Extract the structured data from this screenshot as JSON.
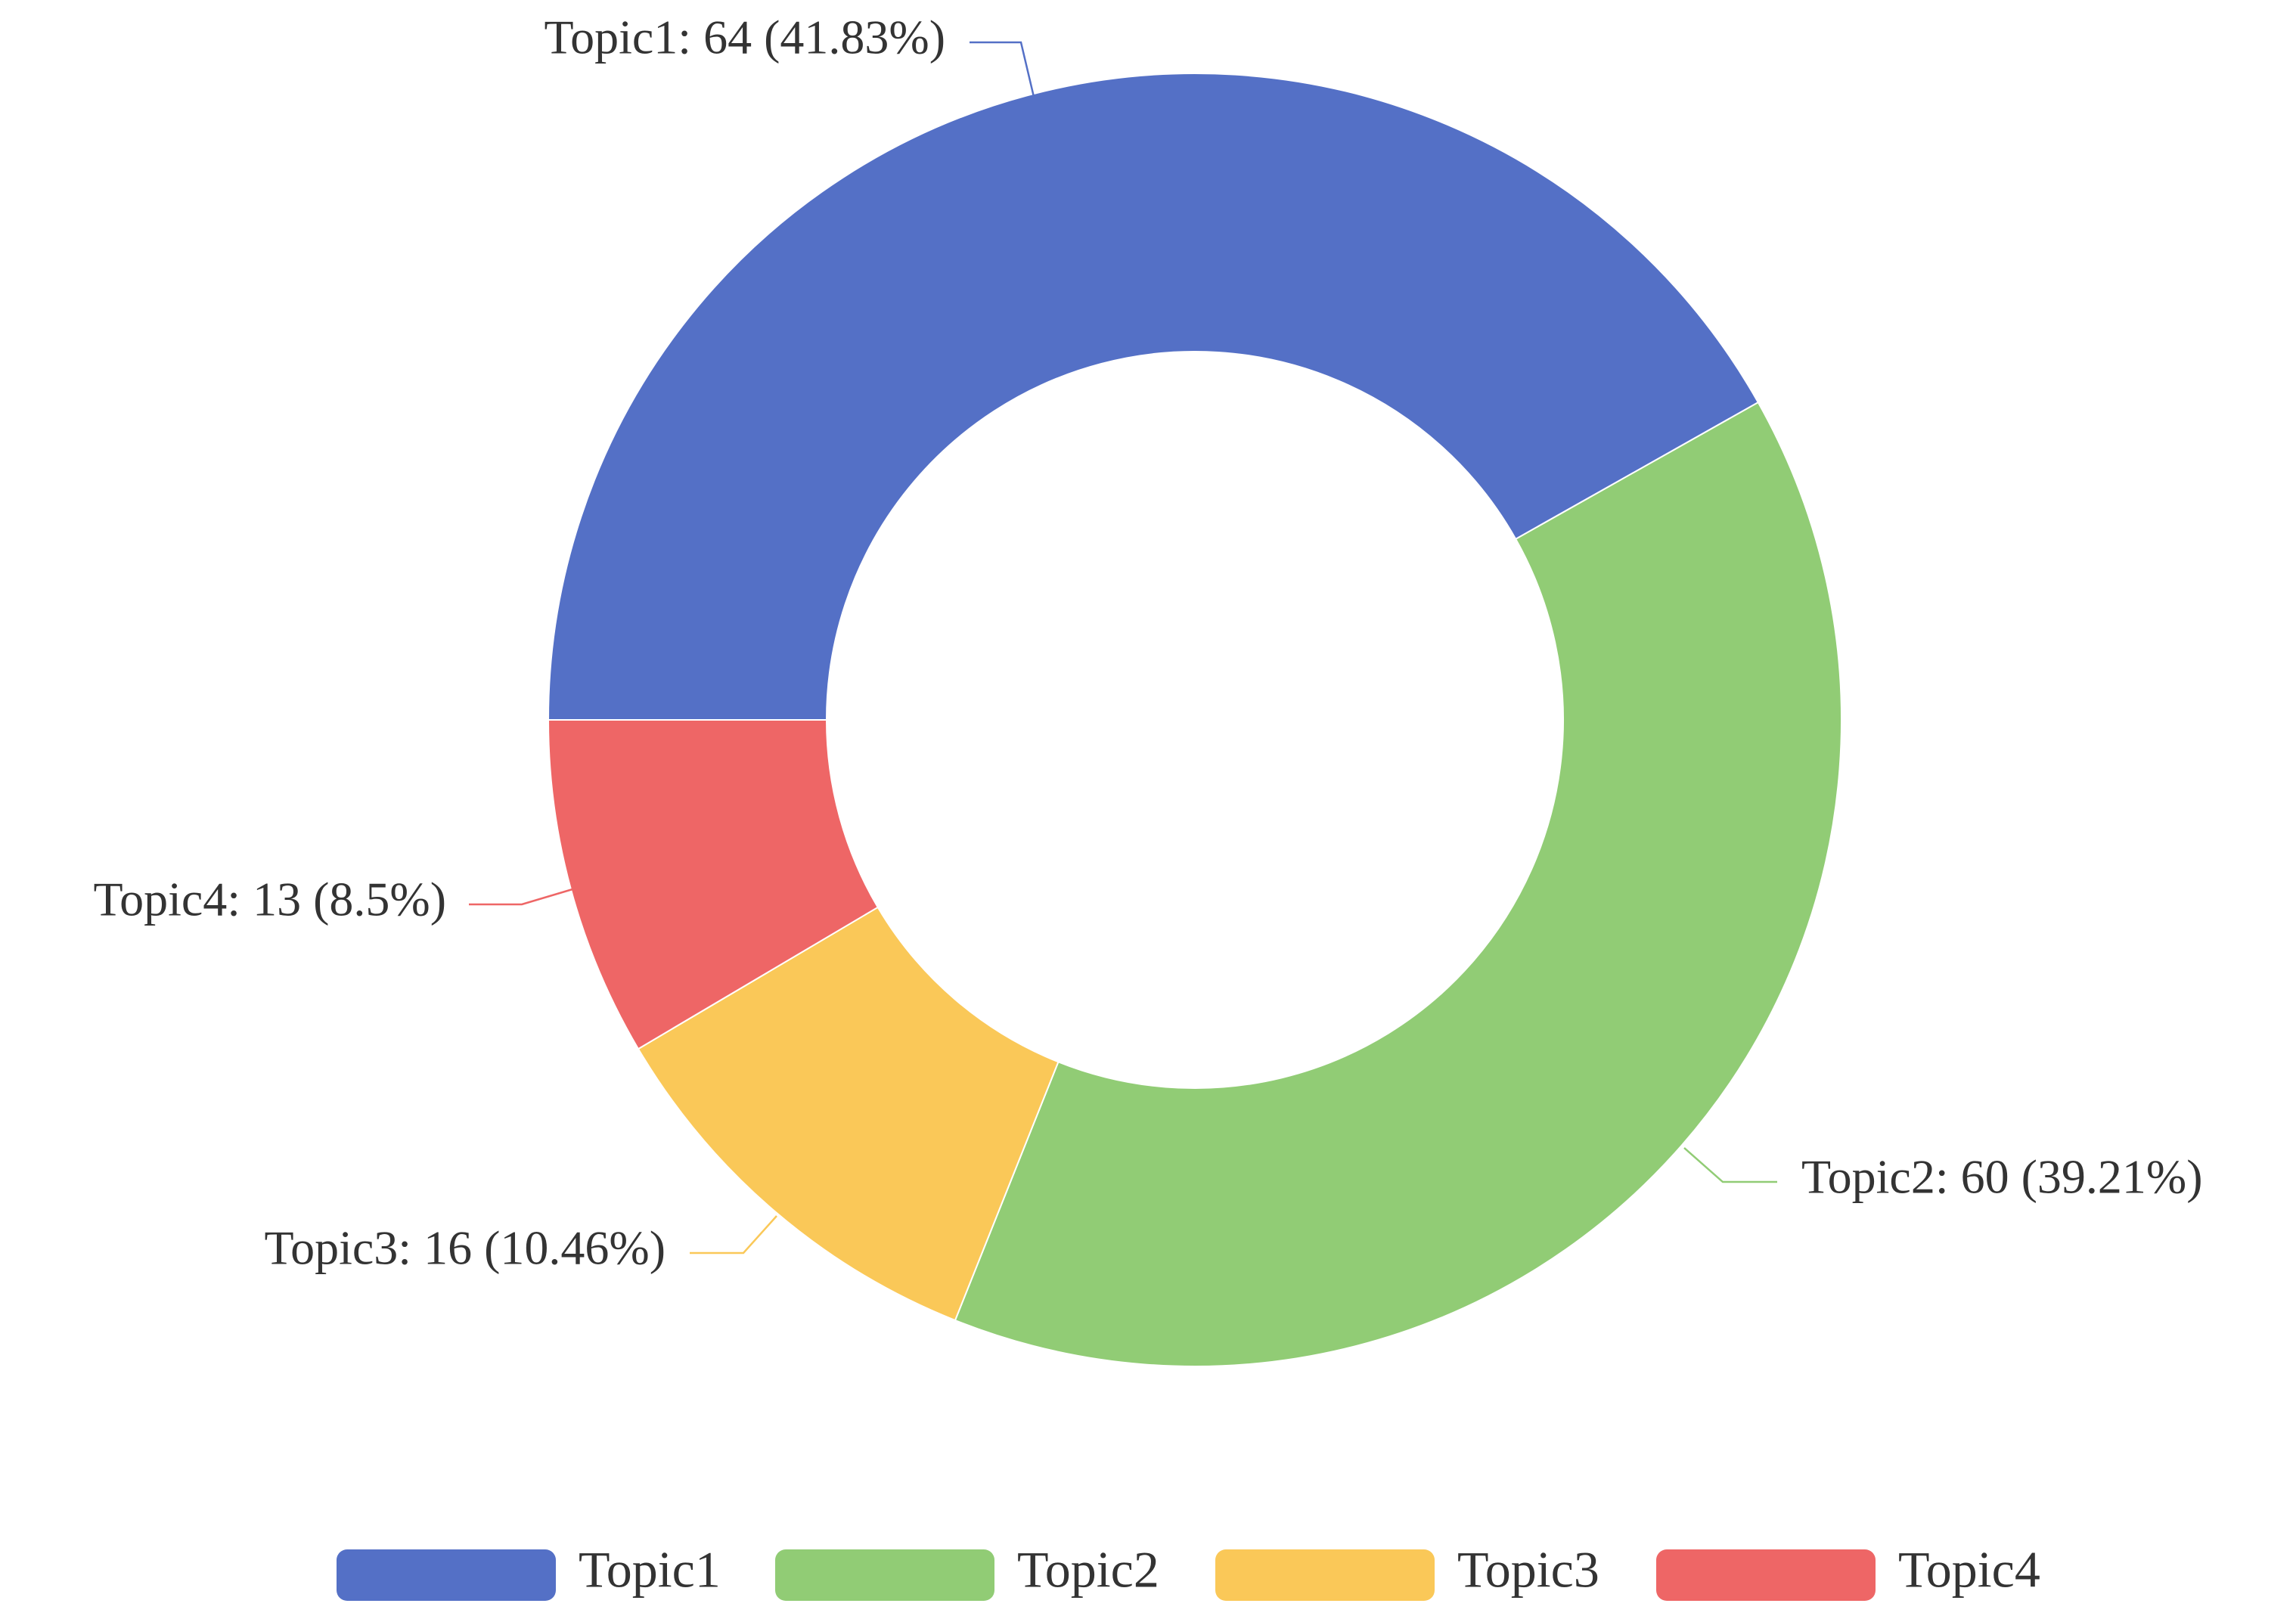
{
  "chart_data": {
    "type": "pie",
    "donut": true,
    "slices": [
      {
        "name": "Topic1",
        "value": 64,
        "percent": 41.83,
        "color": "#5470c6",
        "label": "Topic1: 64 (41.83%)"
      },
      {
        "name": "Topic2",
        "value": 60,
        "percent": 39.21,
        "color": "#91cc75",
        "label": "Topic2: 60 (39.21%)"
      },
      {
        "name": "Topic3",
        "value": 16,
        "percent": 10.46,
        "color": "#fac858",
        "label": "Topic3: 16 (10.46%)"
      },
      {
        "name": "Topic4",
        "value": 13,
        "percent": 8.5,
        "color": "#ee6666",
        "label": "Topic4: 13 (8.5%)"
      }
    ],
    "legend": {
      "position": "bottom",
      "items": [
        "Topic1",
        "Topic2",
        "Topic3",
        "Topic4"
      ]
    }
  }
}
